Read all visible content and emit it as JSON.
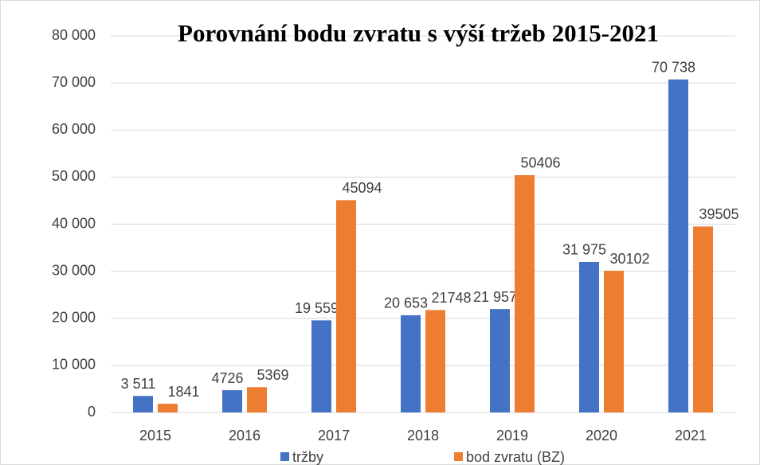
{
  "chart_data": {
    "type": "bar",
    "title": "Porovnání bodu zvratu s výší tržeb 2015-2021",
    "categories": [
      "2015",
      "2016",
      "2017",
      "2018",
      "2019",
      "2020",
      "2021"
    ],
    "series": [
      {
        "name": "tržby",
        "color": "#4472c4",
        "values": [
          3511,
          4726,
          19559,
          20653,
          21957,
          31975,
          70738
        ],
        "value_labels": [
          "3 511",
          "4726",
          "19 559",
          "20 653",
          "21 957",
          "31 975",
          "70 738"
        ]
      },
      {
        "name": "bod zvratu (BZ)",
        "color": "#ed7d31",
        "values": [
          1841,
          5369,
          45094,
          21748,
          50406,
          30102,
          39505
        ]
      }
    ],
    "ylim": [
      0,
      80000
    ],
    "yticks": [
      0,
      {
        "value": 10000,
        "label": "10 000"
      },
      {
        "value": 20000,
        "label": "20 000"
      },
      {
        "value": 30000,
        "label": "30 000"
      },
      {
        "value": 40000,
        "label": "40 000"
      },
      {
        "value": 50000,
        "label": "50 000"
      },
      {
        "value": 60000,
        "label": "60 000"
      },
      {
        "value": 70000,
        "label": "70 000"
      },
      {
        "value": 80000,
        "label": "80 000"
      }
    ],
    "grid": true,
    "legend": "bottom"
  }
}
